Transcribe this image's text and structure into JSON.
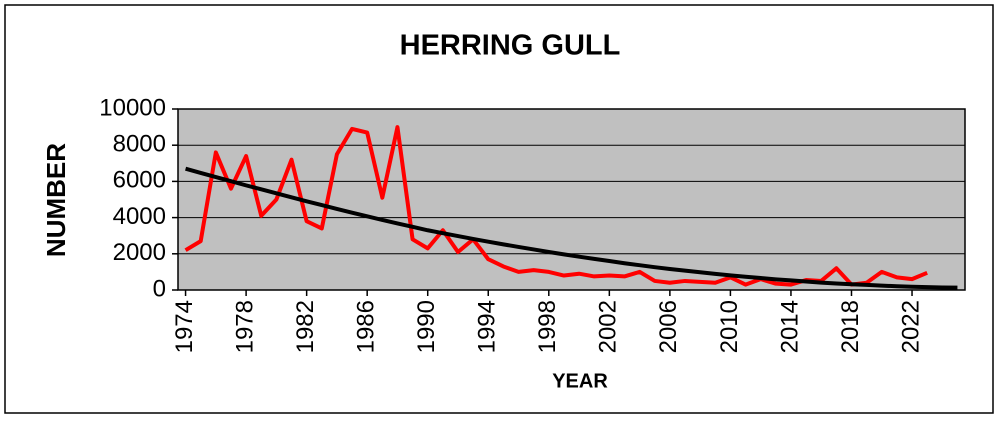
{
  "chart_data": {
    "type": "line",
    "title": "HERRING GULL",
    "x_label": "YEAR",
    "y_label": "NUMBER",
    "x": [
      1974,
      1975,
      1976,
      1977,
      1978,
      1979,
      1980,
      1981,
      1982,
      1983,
      1984,
      1985,
      1986,
      1987,
      1988,
      1989,
      1990,
      1991,
      1992,
      1993,
      1994,
      1995,
      1996,
      1997,
      1998,
      1999,
      2000,
      2001,
      2002,
      2003,
      2004,
      2005,
      2006,
      2007,
      2008,
      2009,
      2010,
      2011,
      2012,
      2013,
      2014,
      2015,
      2016,
      2017,
      2018,
      2019,
      2020,
      2021,
      2022,
      2023,
      2024,
      2025
    ],
    "series": [
      {
        "color": "#ff0000",
        "values": [
          2200,
          2700,
          7600,
          5600,
          7400,
          4100,
          5000,
          7200,
          3800,
          3400,
          7500,
          8900,
          8700,
          5100,
          9000,
          2800,
          2300,
          3300,
          2100,
          2800,
          1700,
          1300,
          1000,
          1100,
          1000,
          800,
          900,
          750,
          800,
          750,
          1000,
          500,
          400,
          500,
          450,
          400,
          700,
          300,
          600,
          350,
          300,
          550,
          500,
          1200,
          300,
          400,
          1000,
          700,
          600,
          950,
          null,
          null
        ]
      },
      {
        "color": "#000000",
        "values": [
          6700,
          6470,
          6240,
          6010,
          5780,
          5560,
          5340,
          5120,
          4900,
          4690,
          4480,
          4270,
          4070,
          3870,
          3680,
          3490,
          3300,
          3140,
          2980,
          2820,
          2670,
          2520,
          2380,
          2240,
          2100,
          1970,
          1840,
          1720,
          1600,
          1480,
          1370,
          1260,
          1160,
          1070,
          980,
          890,
          810,
          730,
          660,
          590,
          530,
          470,
          410,
          360,
          320,
          280,
          240,
          210,
          180,
          160,
          140,
          130
        ]
      }
    ],
    "xlim": [
      1973.5,
      2025.5
    ],
    "xticks": [
      1974,
      1978,
      1982,
      1986,
      1990,
      1994,
      1998,
      2002,
      2006,
      2010,
      2014,
      2018,
      2022
    ],
    "ylim": [
      0,
      10000
    ],
    "yticks": [
      0,
      2000,
      4000,
      6000,
      8000,
      10000
    ],
    "grid": true,
    "background": "#c0c0c0"
  }
}
